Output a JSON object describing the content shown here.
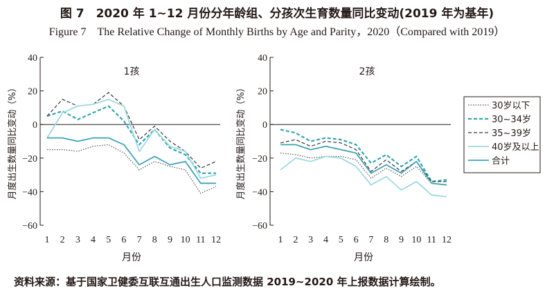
{
  "title_cn": "图 7　2020 年 1~12 月份分年龄组、分孩次生育数量同比变动(2019 年为基年)",
  "title_en": "Figure 7　The Relative Change of Monthly Births by Age and Parity，2020（Compared with 2019）",
  "source": "资料来源：基于国家卫健委互联互通出生人口监测数据 2019~2020 年上报数据计算绘制。",
  "chart_data": [
    {
      "type": "line",
      "title": "1孩",
      "xlabel": "月份",
      "ylabel": "月度出生数量同比变动（%）",
      "x": [
        1,
        2,
        3,
        4,
        5,
        6,
        7,
        8,
        9,
        10,
        11,
        12
      ],
      "ylim": [
        -60,
        40
      ],
      "yticks": [
        40,
        20,
        0,
        -20,
        -40,
        -60
      ],
      "series": [
        {
          "name": "30岁以下",
          "style": "dotted",
          "color": "#555555",
          "values": [
            -15,
            -15,
            -16,
            -13,
            -12,
            -17,
            -27,
            -22,
            -25,
            -27,
            -41,
            -37
          ]
        },
        {
          "name": "30~34岁",
          "style": "dashed-bold",
          "color": "#2fa6ae",
          "values": [
            5,
            8,
            3,
            7,
            11,
            2,
            -12,
            -3,
            -14,
            -18,
            -29,
            -29
          ]
        },
        {
          "name": "35~39岁",
          "style": "dashed",
          "color": "#333333",
          "values": [
            5,
            15,
            11,
            12,
            19,
            11,
            -9,
            -1,
            -10,
            -16,
            -26,
            -22
          ]
        },
        {
          "name": "40岁及以上",
          "style": "solid-light",
          "color": "#9ed8e3",
          "values": [
            -8,
            7,
            11,
            12,
            15,
            11,
            -16,
            -3,
            -13,
            -16,
            -32,
            -30
          ]
        },
        {
          "name": "合计",
          "style": "solid",
          "color": "#3ea3b5",
          "values": [
            -8,
            -8,
            -10,
            -8,
            -8,
            -12,
            -24,
            -19,
            -24,
            -22,
            -35,
            -35
          ]
        }
      ]
    },
    {
      "type": "line",
      "title": "2孩",
      "xlabel": "月份",
      "ylabel": "月度出生数量同比变动（%）",
      "x": [
        1,
        2,
        3,
        4,
        5,
        6,
        7,
        8,
        9,
        10,
        11,
        12
      ],
      "ylim": [
        -60,
        40
      ],
      "yticks": [
        40,
        20,
        0,
        -20,
        -40,
        -60
      ],
      "series": [
        {
          "name": "30岁以下",
          "style": "dotted",
          "color": "#555555",
          "values": [
            -17,
            -18,
            -20,
            -19,
            -19,
            -21,
            -32,
            -26,
            -31,
            -25,
            -35,
            -36
          ]
        },
        {
          "name": "30~34岁",
          "style": "dashed-bold",
          "color": "#2fa6ae",
          "values": [
            -3,
            -5,
            -10,
            -8,
            -9,
            -12,
            -23,
            -18,
            -25,
            -19,
            -34,
            -33
          ]
        },
        {
          "name": "35~39岁",
          "style": "dashed",
          "color": "#333333",
          "values": [
            -11,
            -9,
            -13,
            -10,
            -11,
            -15,
            -28,
            -21,
            -28,
            -22,
            -34,
            -34
          ]
        },
        {
          "name": "40岁及以上",
          "style": "solid-light",
          "color": "#9ed8e3",
          "values": [
            -27,
            -20,
            -22,
            -19,
            -20,
            -25,
            -36,
            -31,
            -39,
            -34,
            -42,
            -43
          ]
        },
        {
          "name": "合计",
          "style": "solid",
          "color": "#3ea3b5",
          "values": [
            -12,
            -12,
            -15,
            -13,
            -15,
            -17,
            -29,
            -24,
            -29,
            -22,
            -35,
            -36
          ]
        }
      ]
    }
  ],
  "legend": {
    "placement": "right",
    "entries": [
      "30岁以下",
      "30~34岁",
      "35~39岁",
      "40岁及以上",
      "合计"
    ]
  }
}
